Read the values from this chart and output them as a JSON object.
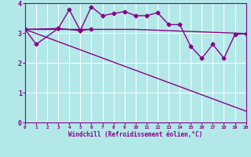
{
  "xlabel": "Windchill (Refroidissement éolien,°C)",
  "xlim": [
    0,
    20
  ],
  "ylim": [
    0,
    4
  ],
  "yticks": [
    0,
    1,
    2,
    3,
    4
  ],
  "xticks": [
    0,
    1,
    2,
    3,
    4,
    5,
    6,
    7,
    8,
    9,
    10,
    11,
    12,
    13,
    14,
    15,
    16,
    17,
    18,
    19,
    20
  ],
  "bg_color": "#b3e8e8",
  "line_color": "#880088",
  "grid_color": "#d0f0f0",
  "line1_x": [
    0,
    1,
    3,
    4,
    5,
    6
  ],
  "line1_y": [
    3.12,
    2.62,
    3.15,
    3.78,
    3.08,
    3.13
  ],
  "line2_x": [
    0,
    3,
    5,
    6,
    7,
    8,
    9,
    10,
    11,
    12,
    13,
    14,
    15,
    16,
    17,
    18,
    19,
    20
  ],
  "line2_y": [
    3.12,
    3.15,
    3.08,
    3.88,
    3.58,
    3.65,
    3.72,
    3.58,
    3.58,
    3.68,
    3.28,
    3.28,
    2.55,
    2.15,
    2.62,
    2.15,
    2.95,
    2.98
  ],
  "line3_x": [
    0,
    5,
    10,
    20
  ],
  "line3_y": [
    3.12,
    3.12,
    3.12,
    2.98
  ],
  "line4_x": [
    0,
    20
  ],
  "line4_y": [
    3.12,
    0.38
  ]
}
